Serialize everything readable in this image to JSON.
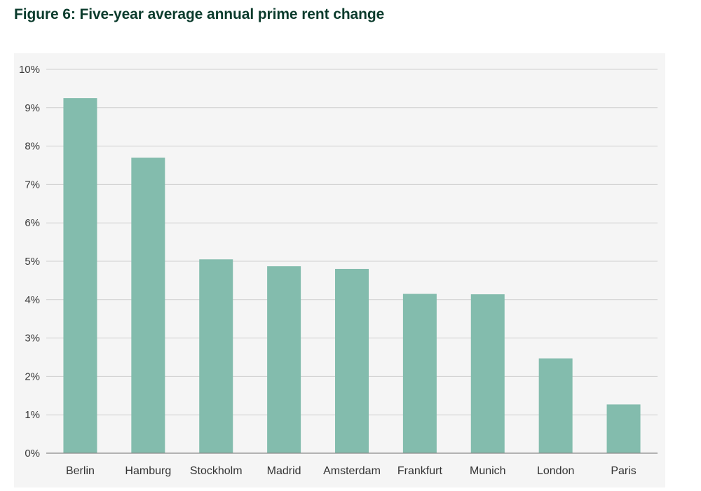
{
  "header": {
    "title": "Figure 6: Five-year average annual prime rent change"
  },
  "colors": {
    "bar": "#83bcad",
    "grid": "#cfcfcf",
    "axis": "#8a8a8a",
    "background": "#f5f5f5",
    "title": "#0b3b2c"
  },
  "chart_data": {
    "type": "bar",
    "title": "Figure 6: Five-year average annual prime rent change",
    "xlabel": "",
    "ylabel": "",
    "categories": [
      "Berlin",
      "Hamburg",
      "Stockholm",
      "Madrid",
      "Amsterdam",
      "Frankfurt",
      "Munich",
      "London",
      "Paris"
    ],
    "values": [
      9.25,
      7.7,
      5.05,
      4.87,
      4.8,
      4.15,
      4.14,
      2.47,
      1.27
    ],
    "ylim": [
      0,
      10
    ],
    "yticks": [
      0,
      1,
      2,
      3,
      4,
      5,
      6,
      7,
      8,
      9,
      10
    ],
    "ytick_labels": [
      "0%",
      "1%",
      "2%",
      "3%",
      "4%",
      "5%",
      "6%",
      "7%",
      "8%",
      "9%",
      "10%"
    ],
    "grid": true,
    "legend": "none"
  }
}
